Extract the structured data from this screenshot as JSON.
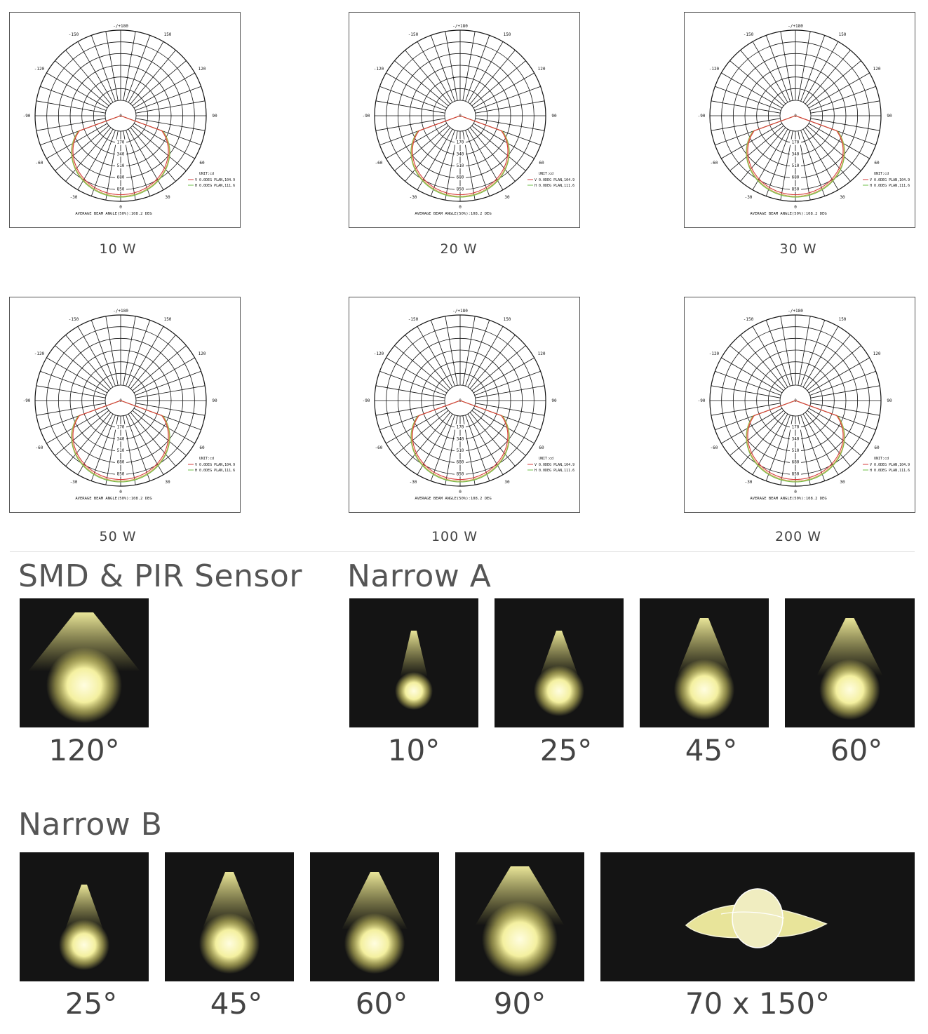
{
  "polar": {
    "top_label": "-/+180",
    "angle_labels": [
      "-150",
      "150",
      "-120",
      "120",
      "-90",
      "90",
      "-60",
      "60",
      "-30",
      "30"
    ],
    "center_label": "0",
    "bottom_label": "0",
    "radial_values": [
      "170",
      "340",
      "510",
      "680",
      "850"
    ],
    "legend_unit": "UNIT:cd",
    "legend_v": "V 0.0DEG PLAN,104.9",
    "legend_h": "H 0.0DEG PLAN,111.6",
    "beam_angle_text": "AVERAGE BEAM ANGLE(50%):108.2 DEG",
    "colors": {
      "v_curve": "#d63b3b",
      "h_curve": "#6fbf4a",
      "c_curve": "#c9a24a"
    }
  },
  "diagrams": [
    {
      "watt": "10 W"
    },
    {
      "watt": "20 W"
    },
    {
      "watt": "30 W"
    },
    {
      "watt": "50 W"
    },
    {
      "watt": "100 W"
    },
    {
      "watt": "200 W"
    }
  ],
  "sections": {
    "smd": {
      "title": "SMD & PIR Sensor",
      "beams": [
        {
          "angle": "120°",
          "cone": 120
        }
      ]
    },
    "narrow_a": {
      "title": "Narrow A",
      "beams": [
        {
          "angle": "10°",
          "cone": 10
        },
        {
          "angle": "25°",
          "cone": 25
        },
        {
          "angle": "45°",
          "cone": 45
        },
        {
          "angle": "60°",
          "cone": 60
        }
      ]
    },
    "narrow_b": {
      "title": "Narrow B",
      "beams": [
        {
          "angle": "25°",
          "cone": 25
        },
        {
          "angle": "45°",
          "cone": 45
        },
        {
          "angle": "60°",
          "cone": 60
        },
        {
          "angle": "90°",
          "cone": 90
        },
        {
          "angle": "70 x 150°",
          "cone": "70x150"
        }
      ]
    }
  },
  "colors": {
    "tile_bg": "#141414",
    "light": "#f4f0a0",
    "glow": "#ddd56a"
  }
}
